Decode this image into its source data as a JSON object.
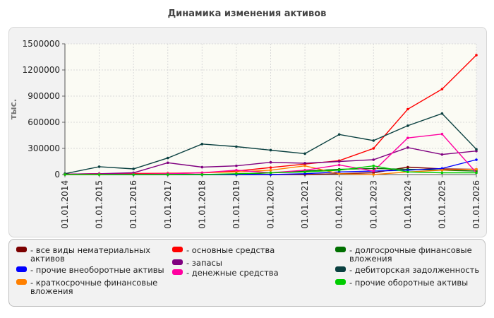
{
  "chart_data": {
    "type": "line",
    "title": "Динамика изменения активов",
    "ylabel": "тыс.",
    "xlabel": "",
    "x": [
      "01.01.2014",
      "01.01.2015",
      "01.01.2016",
      "01.01.2017",
      "01.01.2018",
      "01.01.2019",
      "01.01.2020",
      "01.01.2021",
      "01.01.2022",
      "01.01.2023",
      "01.01.2024",
      "01.01.2025",
      "01.01.2026"
    ],
    "ylim": [
      0,
      1500000
    ],
    "yticks": [
      0,
      300000,
      600000,
      900000,
      1200000,
      1500000
    ],
    "ytick_labels": [
      "0",
      "300000",
      "600000",
      "900000",
      "1200000",
      "1500000"
    ],
    "grid": true,
    "legend_position": "bottom",
    "series": [
      {
        "name": "- все виды нематериальных активов",
        "color": "#7b0000",
        "values": [
          0,
          0,
          0,
          0,
          0,
          0,
          0,
          0,
          10000,
          20000,
          85000,
          65000,
          60000
        ]
      },
      {
        "name": "- основные средства",
        "color": "#ff0000",
        "values": [
          5000,
          10000,
          12000,
          15000,
          20000,
          40000,
          80000,
          120000,
          160000,
          300000,
          750000,
          980000,
          1370000
        ]
      },
      {
        "name": "- долгосрочные финансовые вложения",
        "color": "#007000",
        "values": [
          0,
          0,
          0,
          0,
          0,
          0,
          20000,
          40000,
          60000,
          70000,
          60000,
          50000,
          40000
        ]
      },
      {
        "name": "- прочие внеоборотные активы",
        "color": "#0000ff",
        "values": [
          0,
          0,
          0,
          0,
          0,
          0,
          0,
          10000,
          30000,
          40000,
          50000,
          70000,
          170000
        ]
      },
      {
        "name": "- запасы",
        "color": "#800080",
        "values": [
          5000,
          10000,
          20000,
          135000,
          85000,
          100000,
          140000,
          130000,
          150000,
          170000,
          310000,
          230000,
          270000
        ]
      },
      {
        "name": "- дебиторская задолженность",
        "color": "#0a4040",
        "values": [
          10000,
          90000,
          65000,
          190000,
          350000,
          320000,
          280000,
          240000,
          460000,
          390000,
          560000,
          700000,
          290000
        ]
      },
      {
        "name": "- краткосрочные финансовые вложения",
        "color": "#ff8000",
        "values": [
          0,
          0,
          5000,
          10000,
          20000,
          30000,
          50000,
          100000,
          10000,
          0,
          30000,
          50000,
          60000
        ]
      },
      {
        "name": "- денежные средства",
        "color": "#ff00a0",
        "values": [
          0,
          5000,
          5000,
          10000,
          20000,
          50000,
          20000,
          50000,
          110000,
          40000,
          420000,
          465000,
          20000
        ]
      },
      {
        "name": "- прочие оборотные активы",
        "color": "#00cc00",
        "values": [
          0,
          0,
          0,
          0,
          0,
          10000,
          20000,
          30000,
          50000,
          100000,
          30000,
          20000,
          20000
        ]
      }
    ]
  }
}
